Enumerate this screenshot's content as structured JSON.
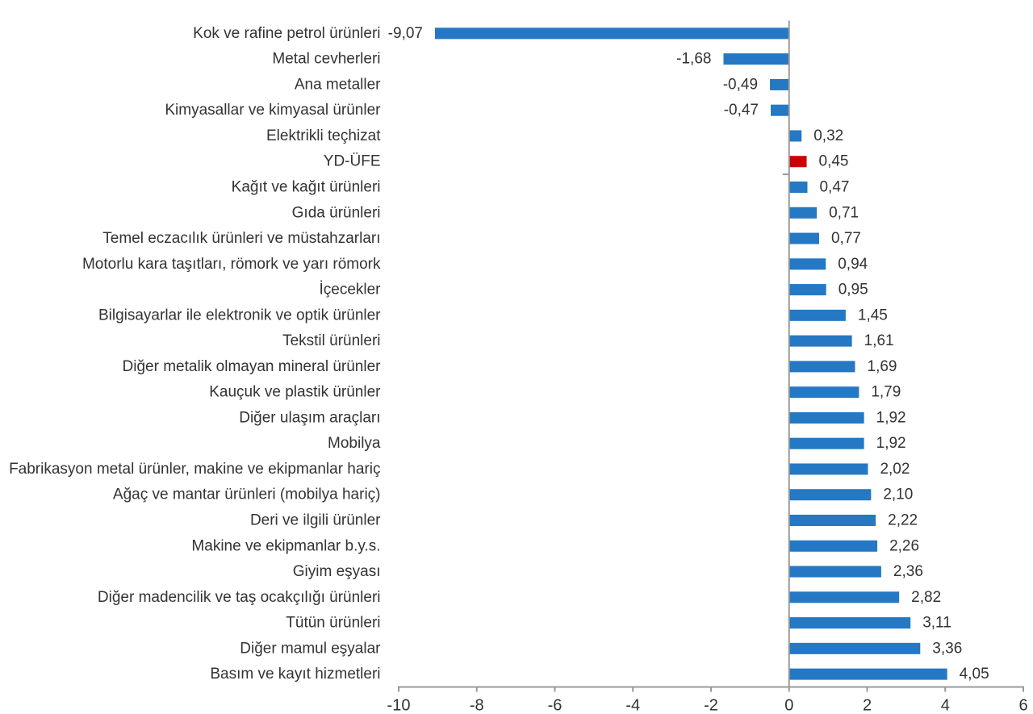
{
  "chart_data": {
    "type": "bar",
    "orientation": "horizontal",
    "title": "",
    "xlabel": "",
    "ylabel": "",
    "categories": [
      "Kok ve rafine petrol ürünleri",
      "Metal cevherleri",
      "Ana metaller",
      "Kimyasallar ve kimyasal ürünler",
      "Elektrikli teçhizat",
      "YD-ÜFE",
      "Kağıt ve kağıt ürünleri",
      "Gıda ürünleri",
      "Temel eczacılık ürünleri ve müstahzarları",
      "Motorlu kara taşıtları, römork ve yarı römork",
      "İçecekler",
      "Bilgisayarlar ile elektronik ve optik ürünler",
      "Tekstil ürünleri",
      "Diğer metalik olmayan mineral ürünler",
      "Kauçuk ve plastik ürünler",
      "Diğer ulaşım araçları",
      "Mobilya",
      "Fabrikasyon metal ürünler, makine ve ekipmanlar hariç",
      "Ağaç ve mantar ürünleri (mobilya hariç)",
      "Deri ve ilgili ürünler",
      "Makine ve ekipmanlar b.y.s.",
      "Giyim eşyası",
      "Diğer madencilik ve taş ocakçılığı ürünleri",
      "Tütün ürünleri",
      "Diğer mamul eşyalar",
      "Basım ve kayıt hizmetleri"
    ],
    "values": [
      -9.07,
      -1.68,
      -0.49,
      -0.47,
      0.32,
      0.45,
      0.47,
      0.71,
      0.77,
      0.94,
      0.95,
      1.45,
      1.61,
      1.69,
      1.79,
      1.92,
      1.92,
      2.02,
      2.1,
      2.22,
      2.26,
      2.36,
      2.82,
      3.11,
      3.36,
      4.05
    ],
    "value_labels": [
      "-9,07",
      "-1,68",
      "-0,49",
      "-0,47",
      "0,32",
      "0,45",
      "0,47",
      "0,71",
      "0,77",
      "0,94",
      "0,95",
      "1,45",
      "1,61",
      "1,69",
      "1,79",
      "1,92",
      "1,92",
      "2,02",
      "2,10",
      "2,22",
      "2,26",
      "2,36",
      "2,82",
      "3,11",
      "3,36",
      "4,05"
    ],
    "highlight_category": "YD-ÜFE",
    "colors": {
      "bar": "#2478c4",
      "highlight_bar": "#cc0000",
      "axis": "#9a9a9a",
      "text": "#333333"
    },
    "xlim": [
      -10,
      6
    ],
    "x_ticks": [
      -10,
      -8,
      -6,
      -4,
      -2,
      0,
      2,
      4,
      6
    ],
    "x_tick_labels": [
      "-10",
      "-8",
      "-6",
      "-4",
      "-2",
      "0",
      "2",
      "4",
      "6"
    ],
    "grid": false,
    "legend": false
  }
}
